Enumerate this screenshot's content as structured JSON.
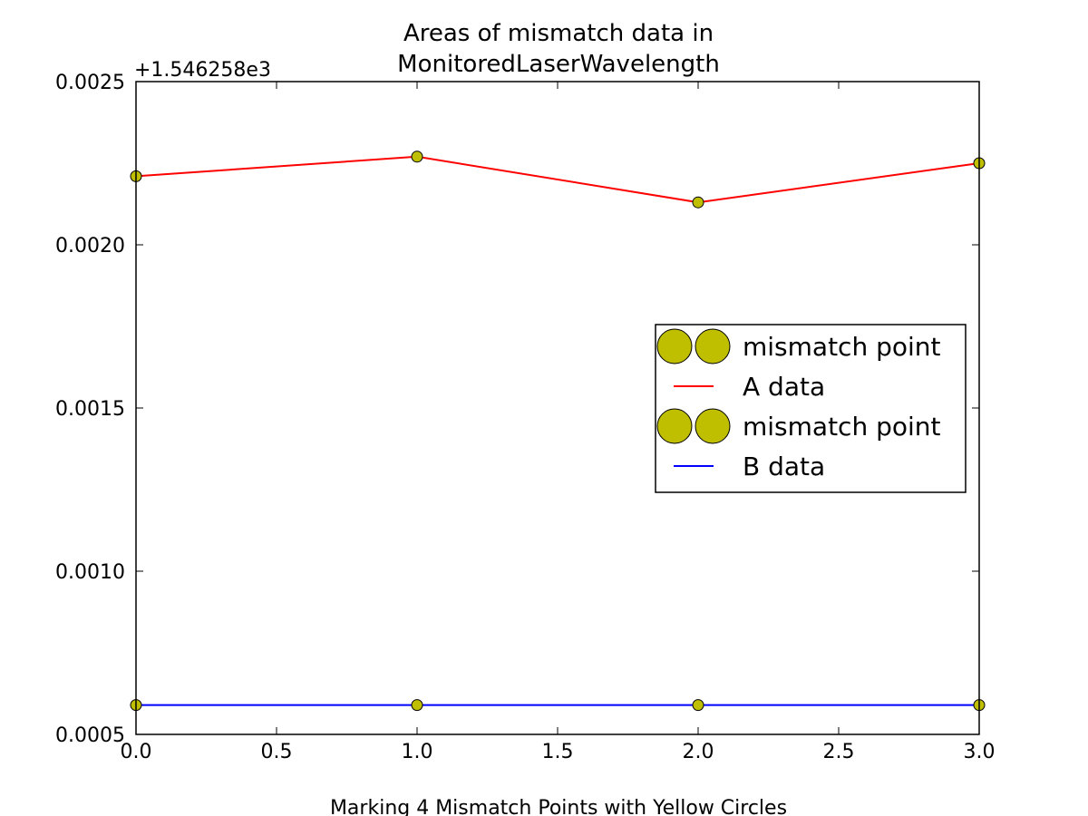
{
  "chart_data": {
    "type": "line",
    "title_lines": [
      "Areas of mismatch data in",
      "MonitoredLaserWavelength"
    ],
    "xlabel": "Marking 4 Mismatch Points with Yellow Circles",
    "ylabel": "",
    "offset_text": "+1.546258e3",
    "x": [
      0,
      1,
      2,
      3
    ],
    "xlim": [
      0,
      3
    ],
    "ylim": [
      0.0005,
      0.0025
    ],
    "xticks": [
      0.0,
      0.5,
      1.0,
      1.5,
      2.0,
      2.5,
      3.0
    ],
    "xtick_labels": [
      "0.0",
      "0.5",
      "1.0",
      "1.5",
      "2.0",
      "2.5",
      "3.0"
    ],
    "yticks": [
      0.0005,
      0.001,
      0.0015,
      0.002,
      0.0025
    ],
    "ytick_labels": [
      "0.0005",
      "0.0010",
      "0.0015",
      "0.0020",
      "0.0025"
    ],
    "grid": false,
    "legend_placement": "center-right",
    "series": [
      {
        "name": "A data",
        "values": [
          0.00221,
          0.00227,
          0.00213,
          0.00225
        ],
        "color": "#ff0000",
        "marker_label": "mismatch point",
        "marker_color": "#bfbf00"
      },
      {
        "name": "B data",
        "values": [
          0.00059,
          0.00059,
          0.00059,
          0.00059
        ],
        "color": "#0000ff",
        "marker_label": "mismatch point",
        "marker_color": "#bfbf00"
      }
    ],
    "legend_entries": [
      {
        "label": "mismatch point",
        "kind": "marker",
        "color": "#bfbf00"
      },
      {
        "label": "A data",
        "kind": "line",
        "color": "#ff0000"
      },
      {
        "label": "mismatch point",
        "kind": "marker",
        "color": "#bfbf00"
      },
      {
        "label": "B data",
        "kind": "line",
        "color": "#0000ff"
      }
    ]
  }
}
